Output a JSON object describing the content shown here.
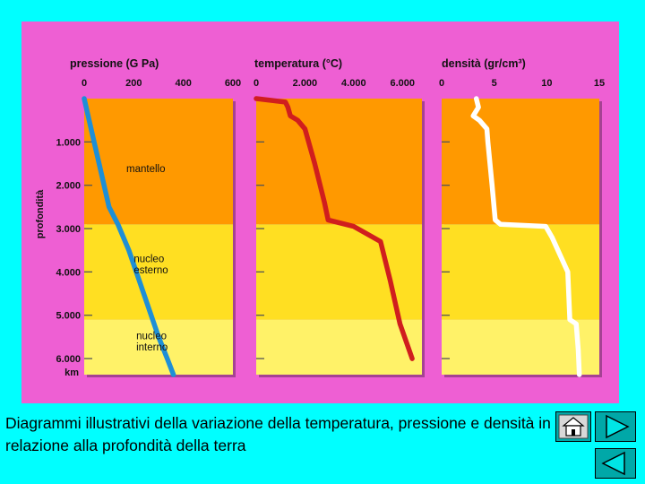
{
  "caption": "Diagrammi illustrativi della variazione della temperatura, pressione e densità in relazione alla profondità della terra",
  "colors": {
    "background": "#00FFFF",
    "figure": "#EE5FD3",
    "mantle": "#FF9900",
    "outer_core": "#FFDF22",
    "inner_core": "#FFF268",
    "pressure_line": "#1E8FD6",
    "temperature_line": "#D01E1E",
    "density_line": "#FFFFFF"
  },
  "nav": {
    "home": "home-icon",
    "next": "next-arrow-icon",
    "prev": "prev-arrow-icon"
  },
  "chart_data": {
    "type": "line",
    "ylabel": "profondità",
    "y_unit": "km",
    "ylim": [
      0,
      6371
    ],
    "y_ticks": [
      1000,
      2000,
      3000,
      4000,
      5000,
      6000
    ],
    "y_tick_labels": [
      "1.000",
      "2.000",
      "3.000",
      "4.000",
      "5.000",
      "6.000"
    ],
    "layers": [
      {
        "name": "mantello",
        "from": 0,
        "to": 2900
      },
      {
        "name": "nucleo esterno",
        "from": 2900,
        "to": 5100
      },
      {
        "name": "nucleo interno",
        "from": 5100,
        "to": 6371
      }
    ],
    "layer_labels": [
      {
        "lines": [
          "mantello"
        ],
        "depth": 1700,
        "x_value": 170
      },
      {
        "lines": [
          "nucleo",
          "esterno"
        ],
        "depth": 3800,
        "x_value": 200
      },
      {
        "lines": [
          "nucleo",
          "interno"
        ],
        "depth": 4650,
        "x_value": 210
      }
    ],
    "panels": [
      {
        "title": "pressione (G Pa)",
        "xlim": [
          0,
          600
        ],
        "x_ticks": [
          0,
          200,
          400,
          600
        ],
        "x_tick_labels": [
          "0",
          "200",
          "400",
          "600"
        ],
        "series": {
          "name": "pressione",
          "points": [
            [
              0,
              0
            ],
            [
              20,
              500
            ],
            [
              60,
              1500
            ],
            [
              100,
              2500
            ],
            [
              136,
              2900
            ],
            [
              180,
              3500
            ],
            [
              240,
              4500
            ],
            [
              300,
              5500
            ],
            [
              335,
              6000
            ],
            [
              360,
              6371
            ]
          ]
        }
      },
      {
        "title": "temperatura (°C)",
        "xlim": [
          0,
          6800
        ],
        "x_ticks": [
          0,
          2000,
          4000,
          6000
        ],
        "x_tick_labels": [
          "0",
          "2.000",
          "4.000",
          "6.000"
        ],
        "series": {
          "name": "temperatura",
          "points": [
            [
              0,
              0
            ],
            [
              1200,
              80
            ],
            [
              1300,
              200
            ],
            [
              1400,
              400
            ],
            [
              1700,
              500
            ],
            [
              2000,
              700
            ],
            [
              2400,
              1500
            ],
            [
              2800,
              2400
            ],
            [
              2950,
              2800
            ],
            [
              4000,
              2950
            ],
            [
              5100,
              3300
            ],
            [
              5500,
              4200
            ],
            [
              5900,
              5200
            ],
            [
              6400,
              6000
            ]
          ]
        }
      },
      {
        "title": "densità (gr/cm³)",
        "xlim": [
          0,
          15
        ],
        "x_ticks": [
          0,
          5,
          10,
          15
        ],
        "x_tick_labels": [
          "0",
          "5",
          "10",
          "15"
        ],
        "series": {
          "name": "densità",
          "points": [
            [
              3.3,
              0
            ],
            [
              3.5,
              200
            ],
            [
              3.0,
              400
            ],
            [
              3.6,
              500
            ],
            [
              4.3,
              700
            ],
            [
              4.4,
              1000
            ],
            [
              4.8,
              2000
            ],
            [
              5.1,
              2800
            ],
            [
              5.6,
              2900
            ],
            [
              9.9,
              2950
            ],
            [
              10.5,
              3200
            ],
            [
              12.0,
              4000
            ],
            [
              12.2,
              5100
            ],
            [
              12.8,
              5200
            ],
            [
              13.0,
              5800
            ],
            [
              13.1,
              6371
            ]
          ]
        }
      }
    ]
  }
}
